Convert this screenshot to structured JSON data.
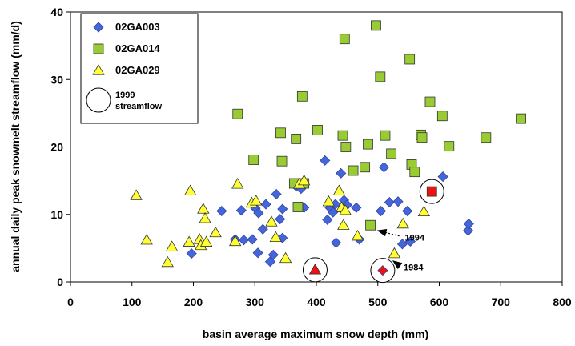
{
  "chart_data": {
    "type": "scatter",
    "xlabel": "basin average maximum snow depth (mm)",
    "ylabel": "annual daily peak snowmelt streamflow (mm/d)",
    "xlim": [
      0,
      800
    ],
    "ylim": [
      0,
      40
    ],
    "x_ticks": [
      "0",
      "100",
      "200",
      "300",
      "400",
      "500",
      "600",
      "700",
      "800"
    ],
    "y_ticks": [
      "0",
      "10",
      "20",
      "30",
      "40"
    ],
    "grid": false,
    "legend_position": "top-left",
    "series": [
      {
        "name": "02GA003",
        "marker": "diamond",
        "color": "#4466dd",
        "points": [
          [
            197,
            4.2
          ],
          [
            246,
            10.5
          ],
          [
            268,
            6.3
          ],
          [
            278,
            10.6
          ],
          [
            282,
            6.2
          ],
          [
            296,
            6.3
          ],
          [
            301,
            10.9
          ],
          [
            305,
            4.3
          ],
          [
            306,
            10.2
          ],
          [
            313,
            7.8
          ],
          [
            318,
            11.5
          ],
          [
            325,
            3.0
          ],
          [
            330,
            4.0
          ],
          [
            335,
            13.0
          ],
          [
            341,
            9.3
          ],
          [
            345,
            10.8
          ],
          [
            345,
            6.5
          ],
          [
            367,
            14.2
          ],
          [
            375,
            13.8
          ],
          [
            380,
            11.0
          ],
          [
            414,
            18.0
          ],
          [
            418,
            9.2
          ],
          [
            422,
            11.0
          ],
          [
            427,
            10.3
          ],
          [
            431,
            11.5
          ],
          [
            432,
            5.8
          ],
          [
            440,
            16.1
          ],
          [
            445,
            12.1
          ],
          [
            450,
            11.4
          ],
          [
            465,
            11.0
          ],
          [
            470,
            6.3
          ],
          [
            505,
            10.5
          ],
          [
            510,
            17.0
          ],
          [
            519,
            11.8
          ],
          [
            533,
            11.9
          ],
          [
            540,
            5.6
          ],
          [
            548,
            10.5
          ],
          [
            553,
            6.0
          ],
          [
            606,
            15.6
          ],
          [
            647,
            7.6
          ],
          [
            648,
            8.6
          ]
        ]
      },
      {
        "name": "02GA014",
        "marker": "square",
        "color": "#99cc33",
        "points": [
          [
            272,
            24.9
          ],
          [
            298,
            18.1
          ],
          [
            342,
            22.1
          ],
          [
            344,
            17.9
          ],
          [
            364,
            14.6
          ],
          [
            367,
            21.2
          ],
          [
            370,
            11.1
          ],
          [
            377,
            27.5
          ],
          [
            380,
            14.6
          ],
          [
            402,
            22.5
          ],
          [
            443,
            21.7
          ],
          [
            446,
            36.0
          ],
          [
            448,
            20.0
          ],
          [
            460,
            16.5
          ],
          [
            479,
            17.0
          ],
          [
            484,
            20.4
          ],
          [
            497,
            38.0
          ],
          [
            504,
            30.4
          ],
          [
            512,
            21.7
          ],
          [
            522,
            19.0
          ],
          [
            552,
            33.0
          ],
          [
            555,
            17.4
          ],
          [
            560,
            16.3
          ],
          [
            570,
            21.8
          ],
          [
            572,
            21.4
          ],
          [
            585,
            26.7
          ],
          [
            605,
            24.6
          ],
          [
            616,
            20.1
          ],
          [
            676,
            21.4
          ],
          [
            733,
            24.2
          ],
          [
            488,
            8.4
          ]
        ]
      },
      {
        "name": "02GA029",
        "marker": "triangle",
        "color": "#ffff33",
        "points": [
          [
            107,
            12.8
          ],
          [
            124,
            6.2
          ],
          [
            165,
            5.2
          ],
          [
            158,
            2.9
          ],
          [
            193,
            5.9
          ],
          [
            195,
            13.5
          ],
          [
            210,
            6.3
          ],
          [
            212,
            5.4
          ],
          [
            216,
            10.8
          ],
          [
            219,
            9.4
          ],
          [
            221,
            5.9
          ],
          [
            236,
            7.3
          ],
          [
            268,
            6.0
          ],
          [
            272,
            14.5
          ],
          [
            295,
            11.7
          ],
          [
            302,
            12.0
          ],
          [
            327,
            8.9
          ],
          [
            334,
            6.6
          ],
          [
            350,
            3.5
          ],
          [
            372,
            14.5
          ],
          [
            380,
            15.0
          ],
          [
            420,
            11.9
          ],
          [
            437,
            13.5
          ],
          [
            441,
            11.0
          ],
          [
            444,
            8.4
          ],
          [
            447,
            10.6
          ],
          [
            467,
            6.8
          ],
          [
            527,
            4.2
          ],
          [
            541,
            8.6
          ],
          [
            575,
            10.4
          ]
        ]
      },
      {
        "name": "1999 streamflow",
        "marker": "circle",
        "points": [
          {
            "x": 588,
            "y": 13.4,
            "series": "02GA014"
          },
          {
            "x": 398,
            "y": 1.8,
            "series": "02GA029"
          },
          {
            "x": 508,
            "y": 1.7,
            "series": "02GA003"
          }
        ]
      }
    ],
    "annotations": [
      {
        "text": "1994",
        "x": 498,
        "y": 7.5
      },
      {
        "text": "1984",
        "x": 528,
        "y": 3.0
      }
    ],
    "legend_labels": [
      "02GA003",
      "02GA014",
      "02GA029",
      "1999",
      "streamflow"
    ]
  }
}
